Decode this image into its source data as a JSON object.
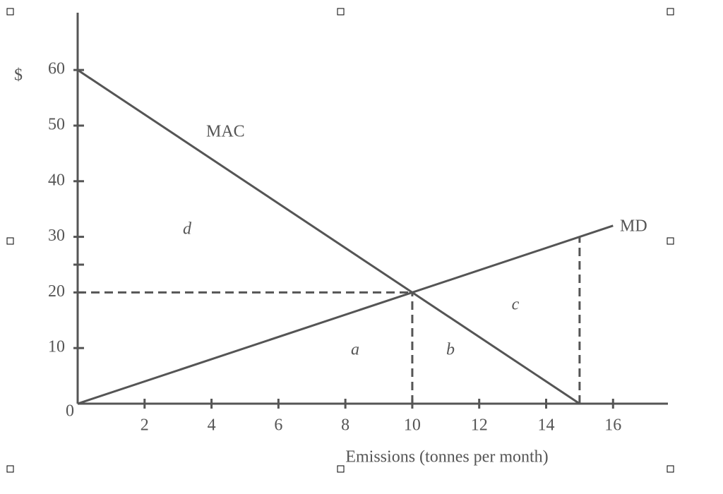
{
  "chart_data": {
    "type": "line",
    "xlabel": "Emissions (tonnes per month)",
    "ylabel": "$",
    "xlim": [
      0,
      17.64
    ],
    "ylim": [
      0,
      70.3
    ],
    "xticks": [
      2,
      4,
      6,
      8,
      10,
      12,
      14,
      16
    ],
    "yticks": [
      0,
      10,
      20,
      30,
      40,
      50,
      60
    ],
    "unlabeled_yticks": [
      25
    ],
    "series": [
      {
        "name": "MAC",
        "color": "#555555",
        "x": [
          0,
          15
        ],
        "values": [
          60,
          0
        ]
      },
      {
        "name": "MD",
        "color": "#555555",
        "x": [
          0,
          16
        ],
        "values": [
          0,
          32
        ]
      }
    ],
    "dashed_guides": [
      {
        "x": [
          0,
          10
        ],
        "y": [
          20,
          20
        ]
      },
      {
        "x": [
          10,
          10
        ],
        "y": [
          0,
          20
        ]
      },
      {
        "x": [
          15,
          15
        ],
        "y": [
          0,
          30
        ]
      }
    ],
    "area_labels": [
      "a",
      "b",
      "c",
      "d"
    ]
  }
}
